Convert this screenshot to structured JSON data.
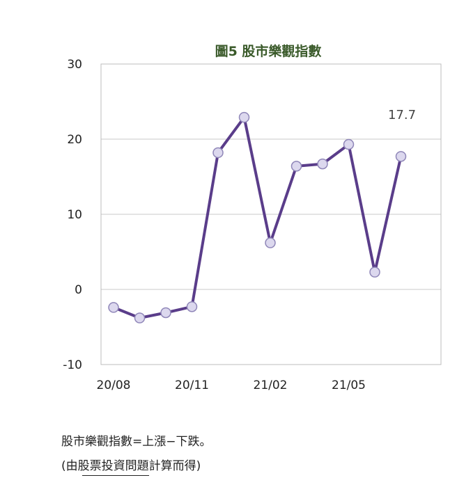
{
  "chart_data": {
    "type": "line",
    "title": "圖5  股市樂觀指數",
    "x_tick_labels": [
      "20/08",
      "20/11",
      "21/02",
      "21/05"
    ],
    "x": [
      "20/08",
      "20/09",
      "20/10",
      "20/11",
      "20/12",
      "21/01",
      "21/02",
      "21/03",
      "21/04",
      "21/05",
      "21/06",
      "21/07"
    ],
    "values": [
      -2.4,
      -3.8,
      -3.1,
      -2.3,
      18.2,
      22.9,
      6.2,
      16.4,
      16.7,
      19.3,
      2.3,
      17.7
    ],
    "ylim": [
      -10,
      30
    ],
    "y_ticks": [
      30,
      20,
      10,
      0,
      -10
    ],
    "grid": true,
    "annotation": "17.7",
    "colors": {
      "line": "#5a3d8a",
      "marker_fill": "#dcd8ee",
      "title": "#3a5a2a",
      "grid": "#c8c8c8"
    }
  },
  "notes": {
    "line1": "股市樂觀指數=上漲−下跌。",
    "line2": "(由股票投資問題計算而得)"
  }
}
